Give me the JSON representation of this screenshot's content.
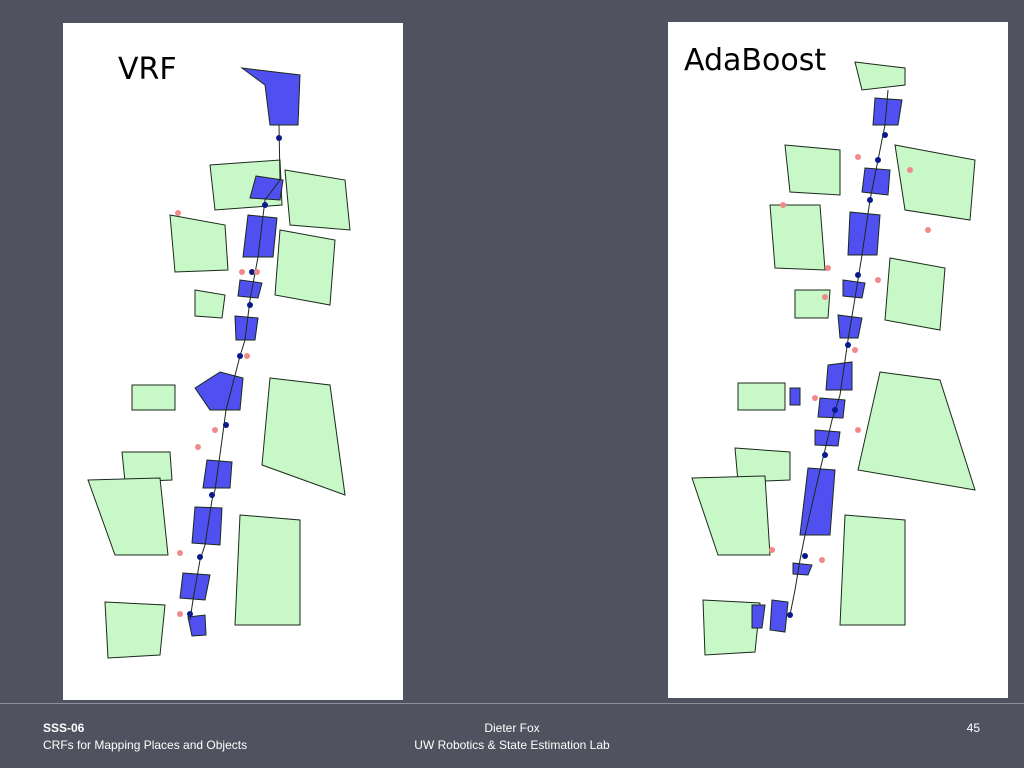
{
  "slide": {
    "panels": [
      {
        "label": "VRF"
      },
      {
        "label": "AdaBoost"
      }
    ],
    "footer": {
      "left_title": "SSS-06",
      "left_subtitle": "CRFs for Mapping Places and Objects",
      "center_name": "Dieter Fox",
      "center_org": "UW Robotics & State Estimation Lab",
      "page_number": "45"
    }
  }
}
